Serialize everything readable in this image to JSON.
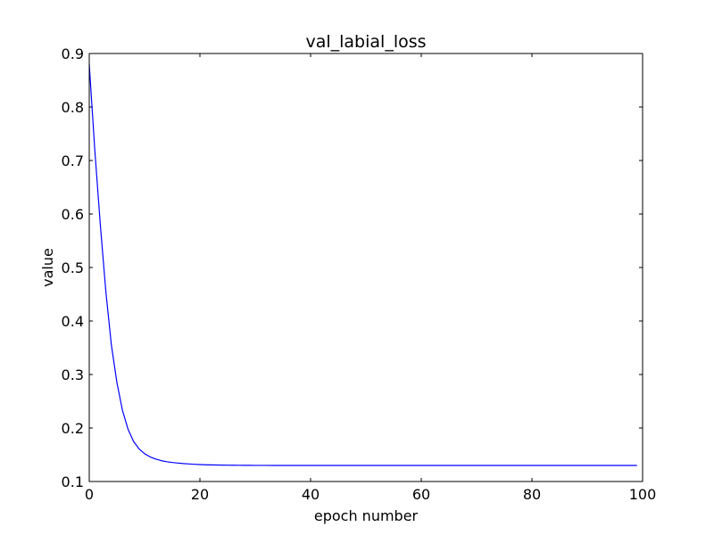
{
  "chart_data": {
    "type": "line",
    "title": "val_labial_loss",
    "xlabel": "epoch number",
    "ylabel": "value",
    "xlim": [
      0,
      100
    ],
    "ylim": [
      0.1,
      0.9
    ],
    "xticks": [
      0,
      20,
      40,
      60,
      80,
      100
    ],
    "yticks": [
      0.1,
      0.2,
      0.3,
      0.4,
      0.5,
      0.6,
      0.7,
      0.8,
      0.9
    ],
    "xtick_labels": [
      "0",
      "20",
      "40",
      "60",
      "80",
      "100"
    ],
    "ytick_labels": [
      "0.1",
      "0.2",
      "0.3",
      "0.4",
      "0.5",
      "0.6",
      "0.7",
      "0.8",
      "0.9"
    ],
    "grid": false,
    "series": [
      {
        "color": "#0000ff",
        "x": [
          0,
          1,
          2,
          3,
          4,
          5,
          6,
          7,
          8,
          9,
          10,
          11,
          12,
          13,
          14,
          15,
          16,
          17,
          18,
          19,
          20,
          21,
          22,
          23,
          24,
          25,
          26,
          27,
          28,
          29,
          30,
          31,
          32,
          33,
          34,
          35,
          36,
          37,
          38,
          39,
          40,
          41,
          42,
          43,
          44,
          45,
          46,
          47,
          48,
          49,
          50,
          51,
          52,
          53,
          54,
          55,
          56,
          57,
          58,
          59,
          60,
          61,
          62,
          63,
          64,
          65,
          66,
          67,
          68,
          69,
          70,
          71,
          72,
          73,
          74,
          75,
          76,
          77,
          78,
          79,
          80,
          81,
          82,
          83,
          84,
          85,
          86,
          87,
          88,
          89,
          90,
          91,
          92,
          93,
          94,
          95,
          96,
          97,
          98,
          99
        ],
        "values": [
          0.88,
          0.72,
          0.58,
          0.455,
          0.355,
          0.285,
          0.233,
          0.198,
          0.175,
          0.161,
          0.152,
          0.146,
          0.142,
          0.139,
          0.137,
          0.1355,
          0.1345,
          0.1335,
          0.1328,
          0.1322,
          0.1317,
          0.1313,
          0.131,
          0.1308,
          0.1306,
          0.1305,
          0.1304,
          0.1303,
          0.1302,
          0.1302,
          0.1301,
          0.1301,
          0.1301,
          0.13,
          0.13,
          0.13,
          0.13,
          0.13,
          0.13,
          0.13,
          0.13,
          0.13,
          0.13,
          0.13,
          0.13,
          0.13,
          0.13,
          0.13,
          0.13,
          0.13,
          0.13,
          0.13,
          0.13,
          0.13,
          0.13,
          0.13,
          0.13,
          0.13,
          0.13,
          0.13,
          0.13,
          0.13,
          0.13,
          0.13,
          0.13,
          0.13,
          0.13,
          0.13,
          0.13,
          0.13,
          0.13,
          0.13,
          0.13,
          0.13,
          0.13,
          0.13,
          0.13,
          0.13,
          0.13,
          0.13,
          0.13,
          0.13,
          0.13,
          0.13,
          0.13,
          0.13,
          0.13,
          0.13,
          0.13,
          0.13,
          0.13,
          0.13,
          0.13,
          0.13,
          0.13,
          0.13,
          0.13,
          0.13,
          0.13,
          0.13
        ]
      }
    ]
  }
}
